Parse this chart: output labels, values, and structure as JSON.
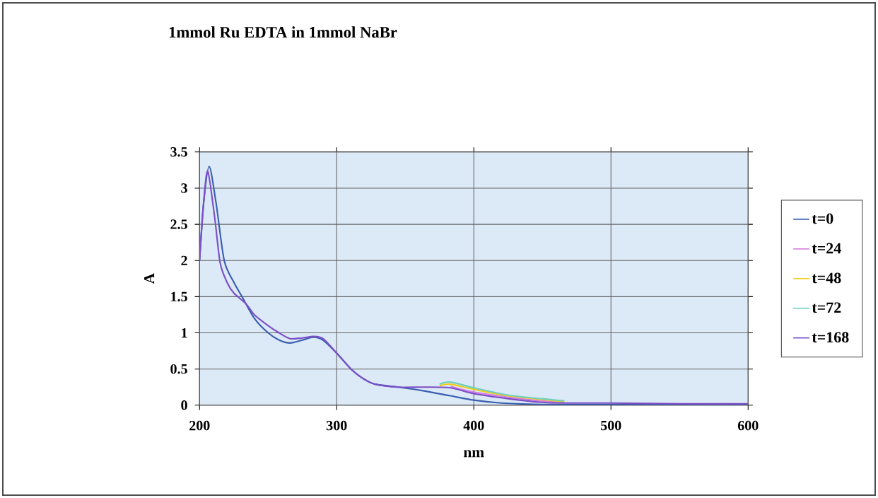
{
  "chart_data": {
    "type": "line",
    "title": "1mmol Ru EDTA in 1mmol NaBr",
    "xlabel": "nm",
    "ylabel": "A",
    "xlim": [
      200,
      600
    ],
    "xticks": [
      200,
      300,
      400,
      500,
      600
    ],
    "ylim": [
      0,
      3.5
    ],
    "yticks": [
      0,
      0.5,
      1,
      1.5,
      2,
      2.5,
      3,
      3.5
    ],
    "grid": true,
    "legend": "right",
    "marker": "none",
    "line_style": "solid",
    "series": [
      {
        "name": "t=0",
        "color": "#3a5fb0",
        "x": [
          200,
          203,
          207,
          212,
          218,
          225,
          231,
          240,
          250,
          258,
          266,
          275,
          283,
          290,
          300,
          311,
          320,
          328,
          345,
          363,
          383,
          400,
          420,
          449,
          466,
          500,
          550,
          600
        ],
        "values": [
          2.0,
          2.8,
          3.3,
          2.8,
          2.0,
          1.7,
          1.5,
          1.2,
          1.0,
          0.9,
          0.86,
          0.9,
          0.94,
          0.9,
          0.72,
          0.49,
          0.36,
          0.29,
          0.25,
          0.2,
          0.13,
          0.07,
          0.03,
          0.01,
          0.01,
          0.01,
          0.01,
          0.01
        ]
      },
      {
        "name": "t=24",
        "color": "#d67de0",
        "x": [
          383,
          400,
          425,
          449,
          466
        ],
        "values": [
          0.26,
          0.18,
          0.11,
          0.06,
          0.04
        ]
      },
      {
        "name": "t=48",
        "color": "#f2cc14",
        "x": [
          375,
          383,
          400,
          425,
          449,
          466
        ],
        "values": [
          0.27,
          0.29,
          0.22,
          0.13,
          0.08,
          0.05
        ]
      },
      {
        "name": "t=72",
        "color": "#6fd0c0",
        "x": [
          375,
          383,
          400,
          425,
          449,
          466
        ],
        "values": [
          0.29,
          0.32,
          0.24,
          0.14,
          0.09,
          0.06
        ]
      },
      {
        "name": "t=168",
        "color": "#7a4fc8",
        "x": [
          200,
          203,
          206,
          211,
          215,
          220,
          225,
          234,
          240,
          250,
          258,
          266,
          275,
          283,
          290,
          300,
          311,
          320,
          328,
          345,
          363,
          383,
          400,
          425,
          449,
          466,
          500,
          550,
          600
        ],
        "values": [
          2.0,
          2.8,
          3.23,
          2.6,
          1.97,
          1.7,
          1.55,
          1.4,
          1.25,
          1.1,
          1.0,
          0.92,
          0.93,
          0.95,
          0.92,
          0.72,
          0.49,
          0.36,
          0.29,
          0.25,
          0.25,
          0.24,
          0.16,
          0.09,
          0.04,
          0.03,
          0.03,
          0.02,
          0.02
        ]
      }
    ]
  }
}
